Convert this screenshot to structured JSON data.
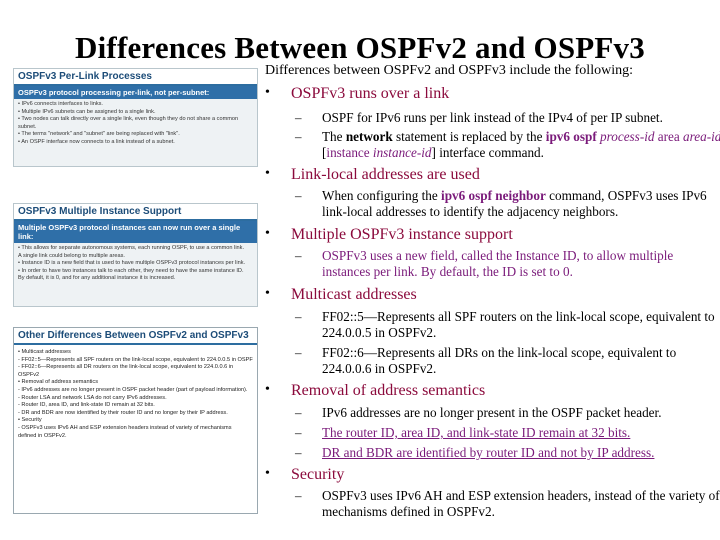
{
  "title": "Differences Between OSPFv2 and OSPFv3",
  "intro": "Differences between OSPFv2 and OSPFv3 include the following:",
  "panels": [
    {
      "title": "OSPFv3 Per-Link Processes",
      "subtitle": "OSPFv3 protocol processing per-link, not per-subnet:",
      "lines": [
        "• IPv6 connects interfaces to links.",
        "• Multiple IPv6 subnets can be assigned to a single link.",
        "• Two nodes can talk directly over a single link, even though they do not share a common",
        "  subnet.",
        "• The terms \"network\" and \"subnet\" are being replaced with \"link\".",
        "• An OSPF interface now connects to a link instead of a subnet."
      ]
    },
    {
      "title": "OSPFv3 Multiple Instance Support",
      "subtitle": "Multiple OSPFv3 protocol instances can now run over a single link:",
      "lines": [
        "• This allows for separate autonomous systems, each running OSPF, to use a common link.",
        "  A single link could belong to multiple areas.",
        "• Instance ID is a new field that is used to have multiple OSPFv3 protocol instances per link.",
        "• In order to have two instances talk to each other, they need to have the same instance ID.",
        "  By default, it is 0, and for any additional instance it is increased."
      ]
    },
    {
      "title": "Other Differences Between OSPFv2 and OSPFv3",
      "subtitle": "",
      "lines": [
        "• Multicast addresses",
        "  - FF02::5—Represents all SPF routers on the link-local scope, equivalent to 224.0.0.5 in OSPFv2",
        "  - FF02::6—Represents all DR routers on the link-local scope, equivalent to 224.0.0.6 in",
        "    OSPFv2",
        "• Removal of address semantics",
        "  - IPv6 addresses are no longer present in OSPF packet header (part of payload information).",
        "  - Router LSA and network LSA do not carry IPv6 addresses.",
        "  - Router ID, area ID, and link-state ID remain at 32 bits.",
        "  - DR and BDR are now identified by their router ID and no longer by their IP address.",
        "• Security",
        "  - OSPFv3 uses IPv6 AH and ESP extension headers instead of variety of mechanisms",
        "    defined in OSPFv2."
      ]
    }
  ],
  "sections": [
    {
      "title": "OSPFv3 runs over a link",
      "subs": [
        {
          "plain": "OSPF for IPv6 runs per link instead of the IPv4 of per IP subnet."
        },
        {
          "parts": [
            "The ",
            "network",
            " statement is replaced by the ",
            "ipv6 ospf",
            " ",
            "process-id",
            " ",
            "area",
            " ",
            "area-id",
            " [",
            "instance",
            " ",
            "instance-id",
            "] interface command."
          ]
        }
      ]
    },
    {
      "title": "Link-local addresses are used",
      "subs": [
        {
          "parts": [
            "When configuring the ",
            "ipv6 ospf neighbor",
            " command, OSPFv3 uses IPv6 link-local addresses to identify the adjacency neighbors."
          ]
        }
      ]
    },
    {
      "title": "Multiple OSPFv3 instance support",
      "subs": [
        {
          "plain": "OSPFv3 uses a new field, called the Instance ID, to allow multiple instances per link. By default, the ID is set to 0."
        }
      ]
    },
    {
      "title": "Multicast addresses",
      "subs": [
        {
          "plain": "FF02::5—Represents all SPF routers on the link-local scope, equivalent to 224.0.0.5 in OSPFv2."
        },
        {
          "plain": "FF02::6—Represents all DRs on the link-local scope, equivalent to 224.0.0.6 in OSPFv2."
        }
      ]
    },
    {
      "title": "Removal of address semantics",
      "subs": [
        {
          "plain": "IPv6 addresses are no longer present in the OSPF packet header."
        },
        {
          "plain": "The router ID, area ID, and link-state ID remain at 32 bits."
        },
        {
          "plain": "DR and BDR are identified by router ID and not by IP address."
        }
      ]
    },
    {
      "title": "Security",
      "subs": [
        {
          "plain": "OSPFv3 uses IPv6 AH and ESP extension headers, instead of the variety of mechanisms defined in OSPFv2."
        }
      ]
    }
  ],
  "bullet_char": "•",
  "dash_char": "–"
}
